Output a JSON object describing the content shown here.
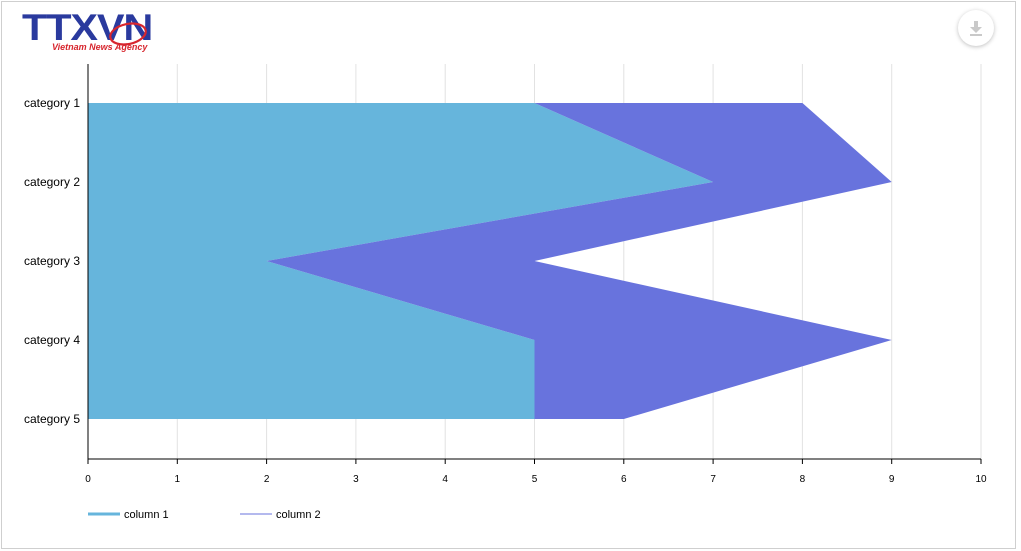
{
  "brand": {
    "logo_text": "TTXVN",
    "logo_subtitle": "Vietnam News Agency",
    "logo_color": "#2a3a9e",
    "subtitle_color": "#d7262e"
  },
  "toolbar": {
    "download_icon": "download-icon"
  },
  "chart_data": {
    "type": "area",
    "orientation": "horizontal",
    "stacked": true,
    "categories": [
      "category 1",
      "category 2",
      "category 3",
      "category 4",
      "category 5"
    ],
    "series": [
      {
        "name": "column 1",
        "values": [
          5,
          7,
          2,
          5,
          5
        ],
        "color": "#66b5dc"
      },
      {
        "name": "column 2",
        "values": [
          3,
          2,
          3,
          4,
          1
        ],
        "color": "#6873dd"
      }
    ],
    "x_ticks": [
      0,
      1,
      2,
      3,
      4,
      5,
      6,
      7,
      8,
      9,
      10
    ],
    "xlim": [
      0,
      10
    ],
    "grid": true,
    "legend_position": "bottom-left",
    "title": "",
    "xlabel": "",
    "ylabel": ""
  }
}
